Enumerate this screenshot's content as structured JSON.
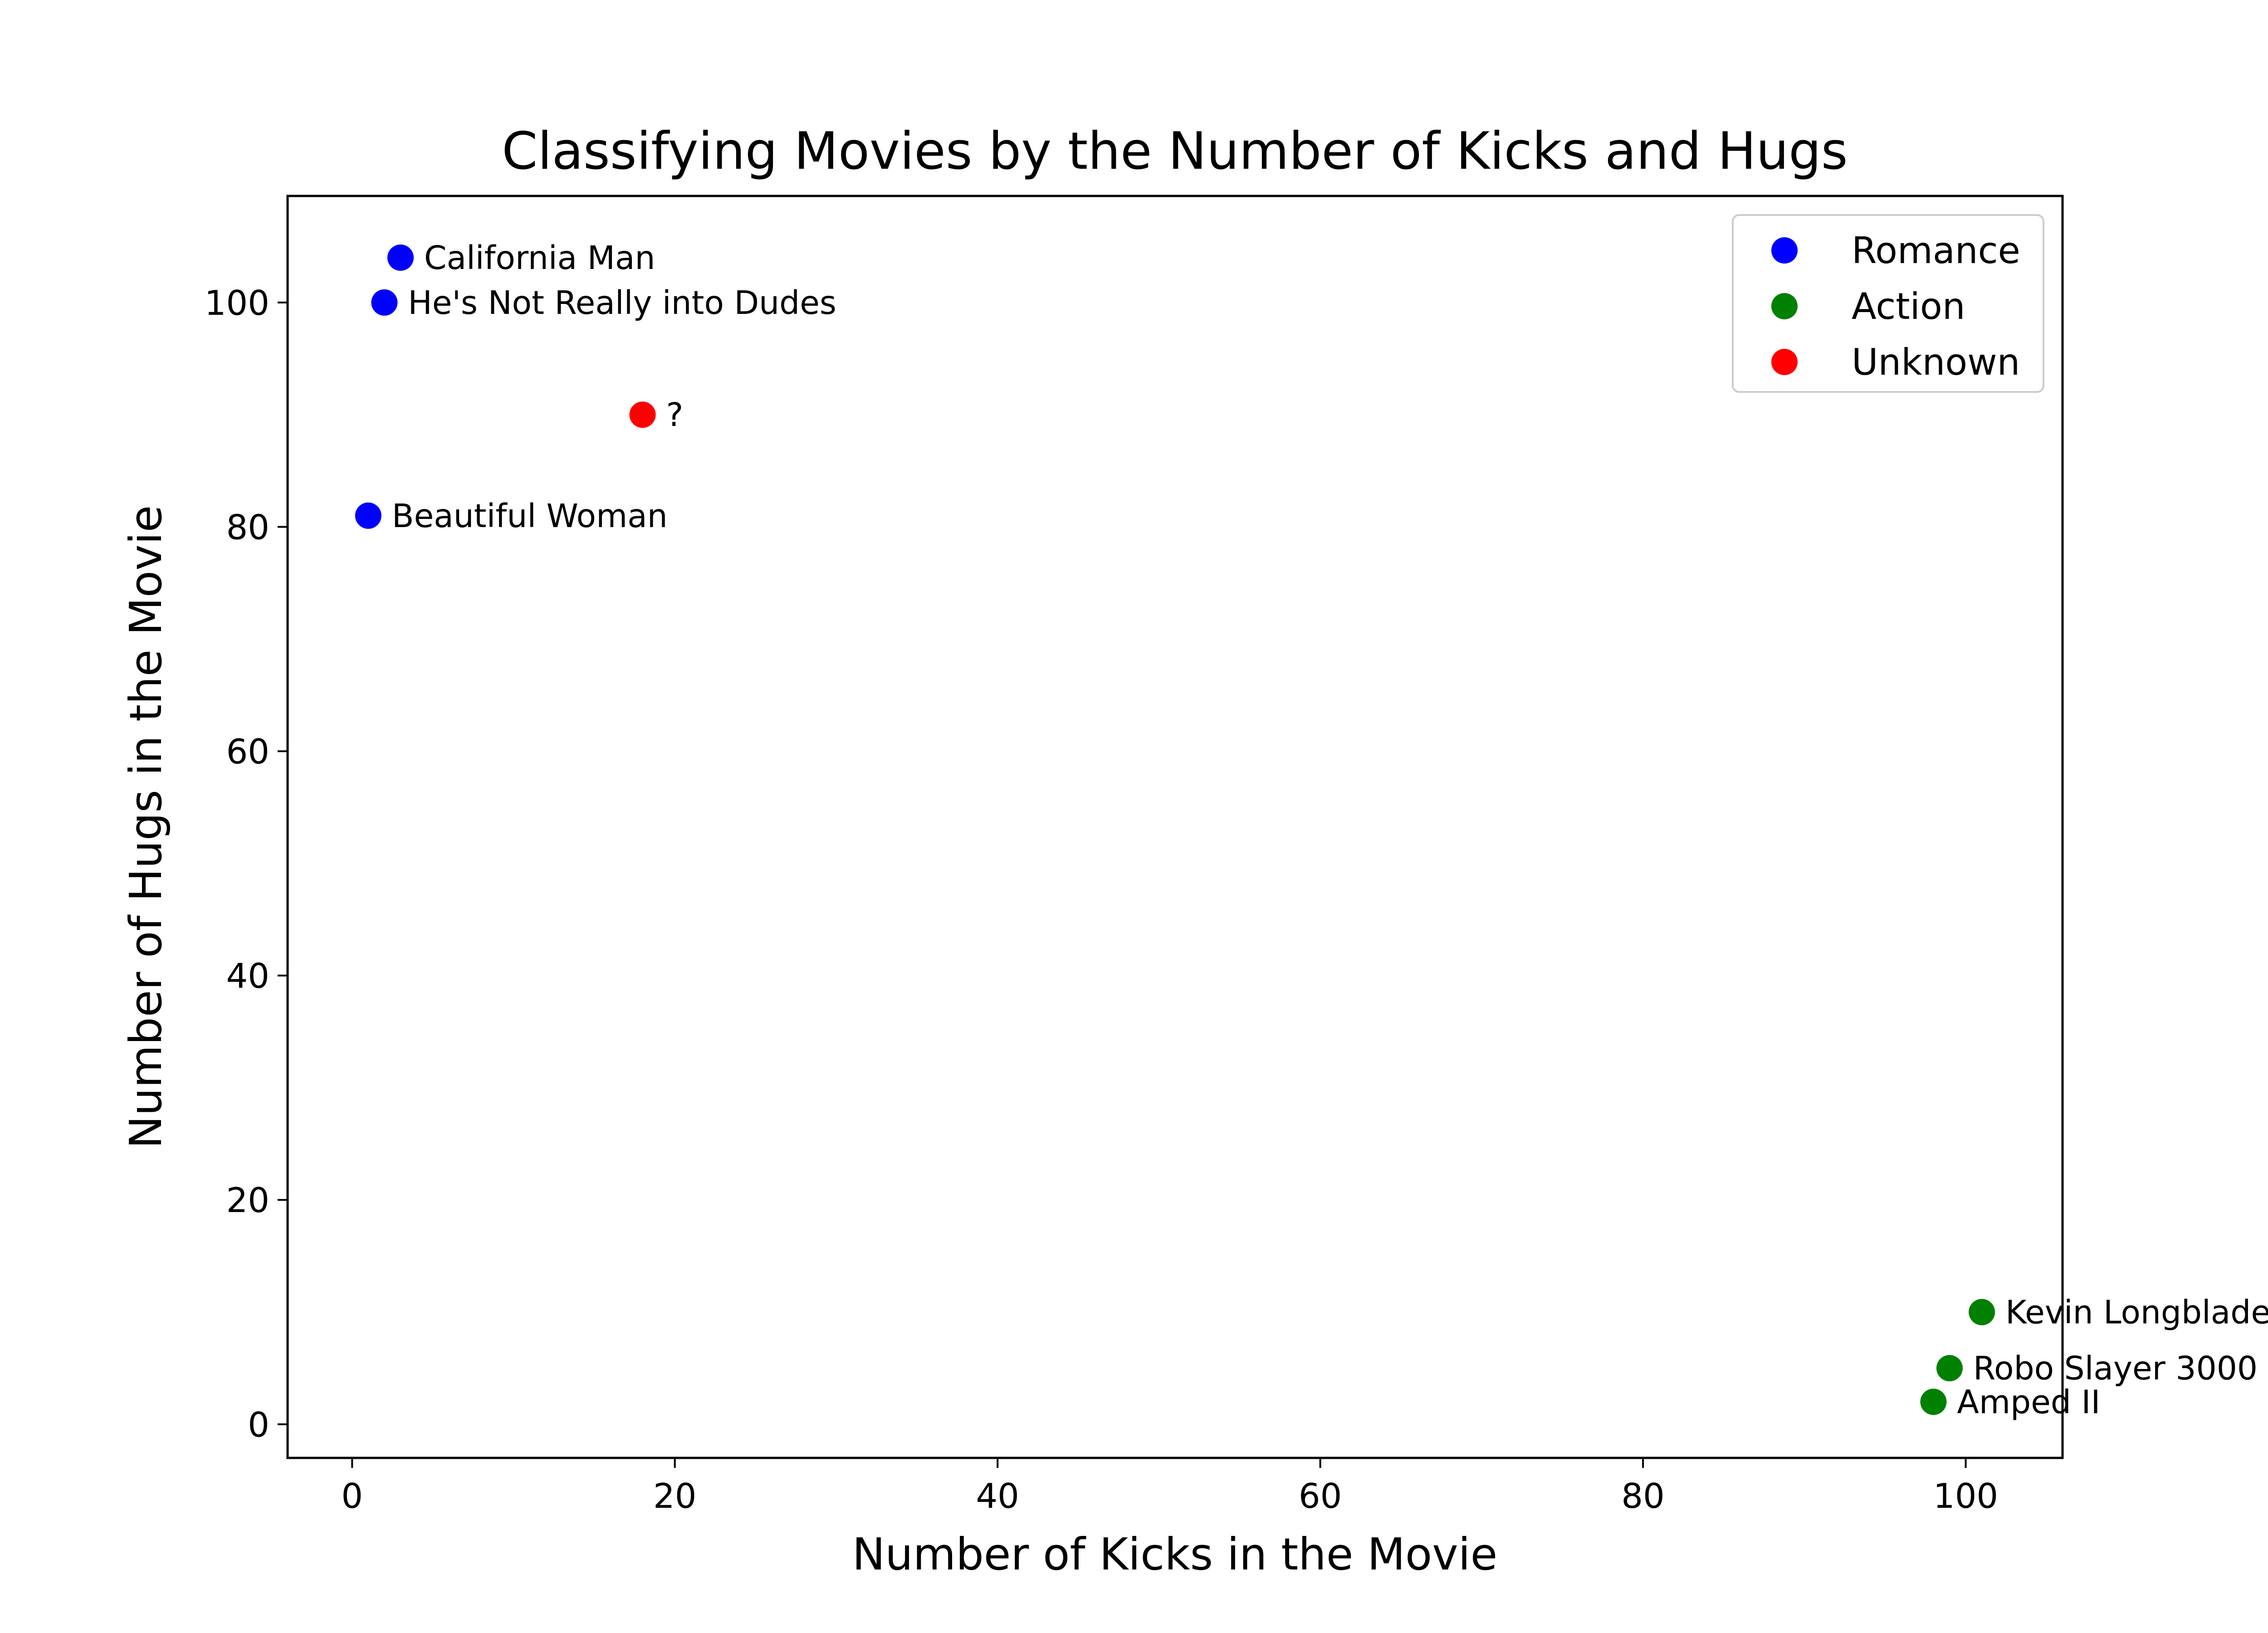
{
  "chart_data": {
    "type": "scatter",
    "title": "Classifying Movies by the Number of Kicks and Hugs",
    "xlabel": "Number of Kicks in the Movie",
    "ylabel": "Number of Hugs in the Movie",
    "xlim": [
      -4,
      106
    ],
    "ylim": [
      -3,
      109.5
    ],
    "xticks": [
      0,
      20,
      40,
      60,
      80,
      100
    ],
    "yticks": [
      0,
      20,
      40,
      60,
      80,
      100
    ],
    "grid": false,
    "legend_position": "upper-right",
    "series": [
      {
        "name": "Romance",
        "color": "#0000ff",
        "points": [
          {
            "x": 3,
            "y": 104,
            "label": "California Man"
          },
          {
            "x": 2,
            "y": 100,
            "label": "He's Not Really into Dudes"
          },
          {
            "x": 1,
            "y": 81,
            "label": "Beautiful Woman"
          }
        ]
      },
      {
        "name": "Action",
        "color": "#008000",
        "points": [
          {
            "x": 101,
            "y": 10,
            "label": "Kevin Longblade"
          },
          {
            "x": 99,
            "y": 5,
            "label": "Robo Slayer 3000"
          },
          {
            "x": 98,
            "y": 2,
            "label": "Amped II"
          }
        ]
      },
      {
        "name": "Unknown",
        "color": "#ff0000",
        "points": [
          {
            "x": 18,
            "y": 90,
            "label": "?"
          }
        ]
      }
    ]
  }
}
